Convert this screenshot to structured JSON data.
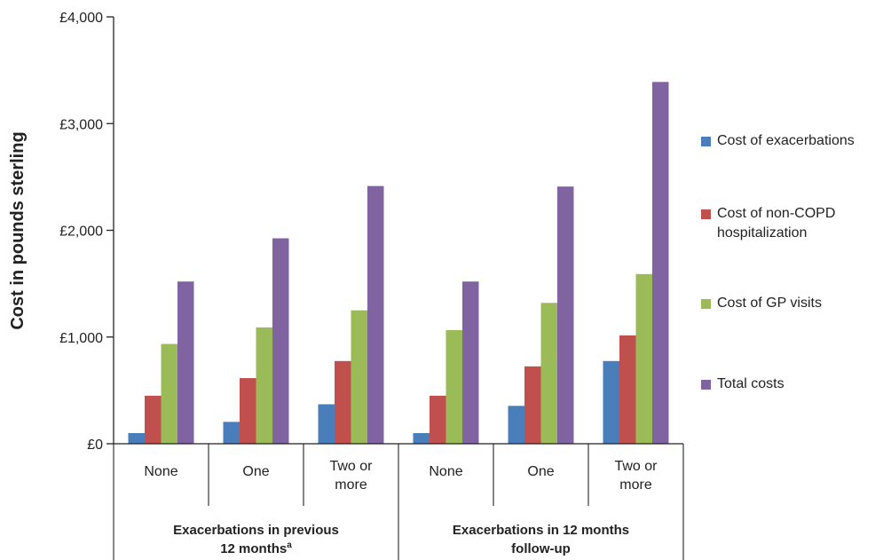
{
  "chart_data": {
    "type": "bar",
    "ylabel": "Cost in pounds  sterling",
    "xlabel": "",
    "ylim": [
      0,
      4000
    ],
    "yticks": [
      "£0",
      "£1,000",
      "£2,000",
      "£3,000",
      "£4,000"
    ],
    "ytick_values": [
      0,
      1000,
      2000,
      3000,
      4000
    ],
    "categories": [
      "None",
      "One",
      "Two or\nmore",
      "None",
      "One",
      "Two or\nmore"
    ],
    "groups": [
      {
        "label": "Exacerbations in previous\n12 months",
        "superscript": "a",
        "categories": [
          0,
          1,
          2
        ]
      },
      {
        "label": "Exacerbations in 12 months\nfollow-up",
        "superscript": "",
        "categories": [
          3,
          4,
          5
        ]
      }
    ],
    "series": [
      {
        "name": "Cost of exacerbations",
        "color": "#4a7ebb",
        "values": [
          100,
          205,
          370,
          100,
          355,
          775
        ]
      },
      {
        "name": "Cost of non-COPD hospitalization",
        "color": "#c0504d",
        "values": [
          450,
          615,
          775,
          450,
          725,
          1015
        ]
      },
      {
        "name": "Cost of GP visits",
        "color": "#9bbb59",
        "values": [
          935,
          1090,
          1250,
          1065,
          1320,
          1590
        ]
      },
      {
        "name": "Total costs",
        "color": "#8064a2",
        "values": [
          1520,
          1925,
          2415,
          1520,
          2410,
          3390
        ]
      }
    ],
    "legend": "right",
    "grid": false
  }
}
